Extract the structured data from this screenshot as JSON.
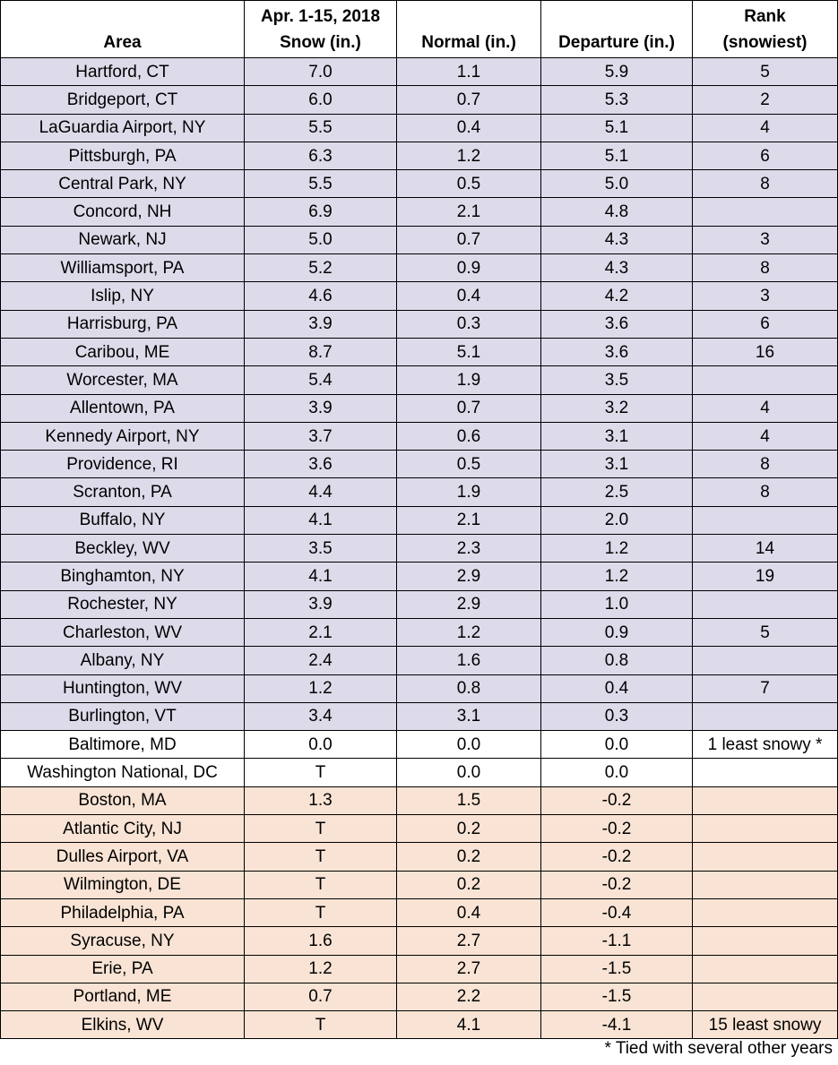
{
  "table": {
    "header": [
      [
        "Area"
      ],
      [
        "Apr. 1-15, 2018",
        "Snow (in.)"
      ],
      [
        "Normal (in.)"
      ],
      [
        "Departure (in.)"
      ],
      [
        "Rank",
        "(snowiest)"
      ]
    ],
    "rows": [
      {
        "cells": [
          "Hartford, CT",
          "7.0",
          "1.1",
          "5.9",
          "5"
        ],
        "fill": "#dddbea"
      },
      {
        "cells": [
          "Bridgeport, CT",
          "6.0",
          "0.7",
          "5.3",
          "2"
        ],
        "fill": "#dddbea"
      },
      {
        "cells": [
          "LaGuardia Airport, NY",
          "5.5",
          "0.4",
          "5.1",
          "4"
        ],
        "fill": "#dddbea"
      },
      {
        "cells": [
          "Pittsburgh, PA",
          "6.3",
          "1.2",
          "5.1",
          "6"
        ],
        "fill": "#dddbea"
      },
      {
        "cells": [
          "Central Park, NY",
          "5.5",
          "0.5",
          "5.0",
          "8"
        ],
        "fill": "#dddbea"
      },
      {
        "cells": [
          "Concord, NH",
          "6.9",
          "2.1",
          "4.8",
          null
        ],
        "fill": "#dddbea"
      },
      {
        "cells": [
          "Newark, NJ",
          "5.0",
          "0.7",
          "4.3",
          "3"
        ],
        "fill": "#dddbea"
      },
      {
        "cells": [
          "Williamsport, PA",
          "5.2",
          "0.9",
          "4.3",
          "8"
        ],
        "fill": "#dddbea"
      },
      {
        "cells": [
          "Islip, NY",
          "4.6",
          "0.4",
          "4.2",
          "3"
        ],
        "fill": "#dddbea"
      },
      {
        "cells": [
          "Harrisburg, PA",
          "3.9",
          "0.3",
          "3.6",
          "6"
        ],
        "fill": "#dddbea"
      },
      {
        "cells": [
          "Caribou, ME",
          "8.7",
          "5.1",
          "3.6",
          "16"
        ],
        "fill": "#dddbea"
      },
      {
        "cells": [
          "Worcester, MA",
          "5.4",
          "1.9",
          "3.5",
          null
        ],
        "fill": "#dddbea"
      },
      {
        "cells": [
          "Allentown, PA",
          "3.9",
          "0.7",
          "3.2",
          "4"
        ],
        "fill": "#dddbea"
      },
      {
        "cells": [
          "Kennedy Airport, NY",
          "3.7",
          "0.6",
          "3.1",
          "4"
        ],
        "fill": "#dddbea"
      },
      {
        "cells": [
          "Providence, RI",
          "3.6",
          "0.5",
          "3.1",
          "8"
        ],
        "fill": "#dddbea"
      },
      {
        "cells": [
          "Scranton, PA",
          "4.4",
          "1.9",
          "2.5",
          "8"
        ],
        "fill": "#dddbea"
      },
      {
        "cells": [
          "Buffalo, NY",
          "4.1",
          "2.1",
          "2.0",
          null
        ],
        "fill": "#dddbea"
      },
      {
        "cells": [
          "Beckley, WV",
          "3.5",
          "2.3",
          "1.2",
          "14"
        ],
        "fill": "#dddbea"
      },
      {
        "cells": [
          "Binghamton, NY",
          "4.1",
          "2.9",
          "1.2",
          "19"
        ],
        "fill": "#dddbea"
      },
      {
        "cells": [
          "Rochester, NY",
          "3.9",
          "2.9",
          "1.0",
          null
        ],
        "fill": "#dddbea"
      },
      {
        "cells": [
          "Charleston, WV",
          "2.1",
          "1.2",
          "0.9",
          "5"
        ],
        "fill": "#dddbea"
      },
      {
        "cells": [
          "Albany, NY",
          "2.4",
          "1.6",
          "0.8",
          null
        ],
        "fill": "#dddbea"
      },
      {
        "cells": [
          "Huntington, WV",
          "1.2",
          "0.8",
          "0.4",
          "7"
        ],
        "fill": "#dddbea"
      },
      {
        "cells": [
          "Burlington, VT",
          "3.4",
          "3.1",
          "0.3",
          null
        ],
        "fill": "#dddbea"
      },
      {
        "cells": [
          "Baltimore, MD",
          "0.0",
          "0.0",
          "0.0",
          "1 least snowy *"
        ],
        "fill": "#ffffff"
      },
      {
        "cells": [
          "Washington National, DC",
          "T",
          "0.0",
          "0.0",
          null
        ],
        "fill": "#ffffff"
      },
      {
        "cells": [
          "Boston, MA",
          "1.3",
          "1.5",
          "-0.2",
          null
        ],
        "fill": "#f8e3d4"
      },
      {
        "cells": [
          "Atlantic City, NJ",
          "T",
          "0.2",
          "-0.2",
          null
        ],
        "fill": "#f8e3d4"
      },
      {
        "cells": [
          "Dulles Airport, VA",
          "T",
          "0.2",
          "-0.2",
          null
        ],
        "fill": "#f8e3d4"
      },
      {
        "cells": [
          "Wilmington, DE",
          "T",
          "0.2",
          "-0.2",
          null
        ],
        "fill": "#f8e3d4"
      },
      {
        "cells": [
          "Philadelphia, PA",
          "T",
          "0.4",
          "-0.4",
          null
        ],
        "fill": "#f8e3d4"
      },
      {
        "cells": [
          "Syracuse, NY",
          "1.6",
          "2.7",
          "-1.1",
          null
        ],
        "fill": "#f8e3d4"
      },
      {
        "cells": [
          "Erie, PA",
          "1.2",
          "2.7",
          "-1.5",
          null
        ],
        "fill": "#f8e3d4"
      },
      {
        "cells": [
          "Portland, ME",
          "0.7",
          "2.2",
          "-1.5",
          null
        ],
        "fill": "#f8e3d4"
      },
      {
        "cells": [
          "Elkins, WV",
          "T",
          "4.1",
          "-4.1",
          "15 least snowy"
        ],
        "fill": "#f8e3d4"
      }
    ],
    "footnote": "* Tied with several other years"
  }
}
